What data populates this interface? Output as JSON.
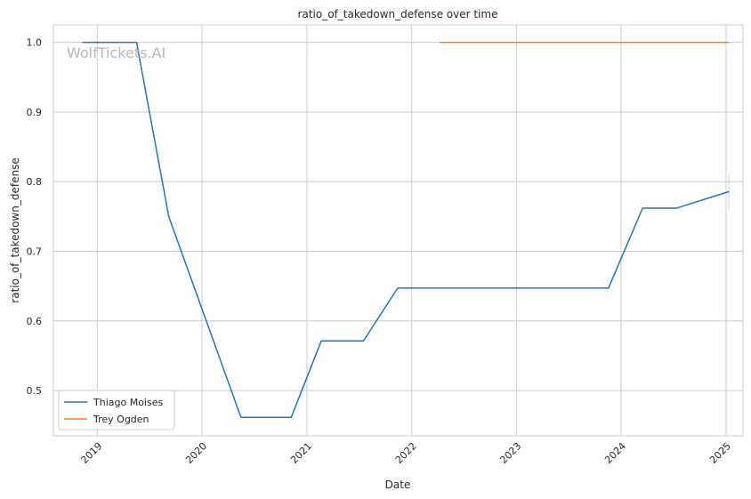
{
  "chart_data": {
    "type": "line",
    "title": "ratio_of_takedown_defense over time",
    "xlabel": "Date",
    "ylabel": "ratio_of_takedown_defense",
    "watermark": "WolfTickets.AI",
    "x_range": [
      "2018-08-01",
      "2025-03-01"
    ],
    "ylim": [
      0.435,
      1.025
    ],
    "x_ticks": [
      {
        "date": "2019-01-01",
        "label": "2019"
      },
      {
        "date": "2020-01-01",
        "label": "2020"
      },
      {
        "date": "2021-01-01",
        "label": "2021"
      },
      {
        "date": "2022-01-01",
        "label": "2022"
      },
      {
        "date": "2023-01-01",
        "label": "2023"
      },
      {
        "date": "2024-01-01",
        "label": "2024"
      },
      {
        "date": "2025-01-01",
        "label": "2025"
      }
    ],
    "y_ticks": [
      {
        "value": 0.5,
        "label": "0.5"
      },
      {
        "value": 0.6,
        "label": "0.6"
      },
      {
        "value": 0.7,
        "label": "0.7"
      },
      {
        "value": 0.8,
        "label": "0.8"
      },
      {
        "value": 0.9,
        "label": "0.9"
      },
      {
        "value": 1.0,
        "label": "1.0"
      }
    ],
    "grid": true,
    "legend_position": "lower-left",
    "series": [
      {
        "name": "Thiago Moises",
        "color": "#1f77b4",
        "points": [
          {
            "x": "2018-11-10",
            "y": 1.0
          },
          {
            "x": "2019-05-18",
            "y": 1.0
          },
          {
            "x": "2019-09-07",
            "y": 0.75
          },
          {
            "x": "2020-05-16",
            "y": 0.4615
          },
          {
            "x": "2020-11-07",
            "y": 0.4615
          },
          {
            "x": "2021-02-20",
            "y": 0.5714
          },
          {
            "x": "2021-07-17",
            "y": 0.5714
          },
          {
            "x": "2021-11-13",
            "y": 0.6471
          },
          {
            "x": "2023-11-18",
            "y": 0.6471
          },
          {
            "x": "2024-03-16",
            "y": 0.7619
          },
          {
            "x": "2024-07-13",
            "y": 0.7619
          },
          {
            "x": "2025-01-11",
            "y": 0.7857
          }
        ],
        "error_band": {
          "x": "2025-01-11",
          "low": 0.76,
          "high": 0.81
        }
      },
      {
        "name": "Trey Ogden",
        "color": "#ff7f0e",
        "points": [
          {
            "x": "2022-04-09",
            "y": 1.0
          },
          {
            "x": "2025-01-11",
            "y": 1.0
          }
        ]
      }
    ]
  }
}
